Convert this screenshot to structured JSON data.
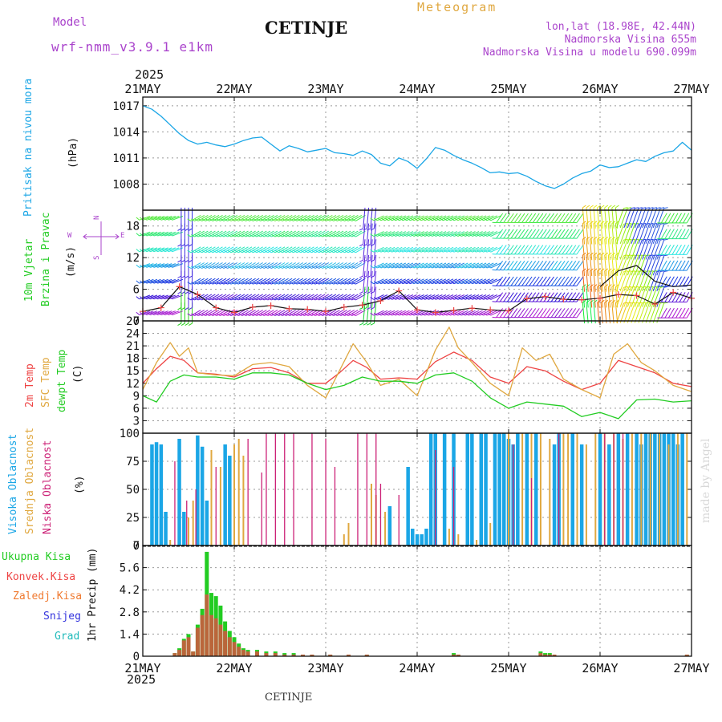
{
  "header": {
    "model_label": "Model",
    "model_name": "wrf-nmm_v3.9.1 e1km",
    "station": "CETINJE",
    "meteogram": "Meteogram",
    "lonlat": "lon,lat (18.98E, 42.44N)",
    "elevation": "Nadmorska Visina 655m",
    "model_elevation": "Nadmorska Visina u modelu 690.099m",
    "year": "2025",
    "footer_station": "CETINJE",
    "credit": "made by Angel"
  },
  "colors": {
    "pressure": "#1ba6e6",
    "temp2m": "#ee4444",
    "sfc": "#e0a840",
    "dewpt": "#22cc22",
    "high_cloud": "#1ba6e6",
    "mid_cloud": "#e0a840",
    "low_cloud": "#cc2277",
    "total_precip": "#22cc22",
    "conv_precip": "#ee4444",
    "frozen_precip": "#f07a30",
    "snow": "#3333dd",
    "grad": "#22bbbb",
    "purple_text": "#aa44cc"
  },
  "chart_data": [
    {
      "type": "line",
      "panel": "pressure",
      "ylabel_series": "Pritisak na nivou mora",
      "ylabel_unit": "(hPa)",
      "x_range": [
        0,
        6
      ],
      "x_tick_labels": [
        "21MAY",
        "22MAY",
        "23MAY",
        "24MAY",
        "25MAY",
        "26MAY",
        "27MAY"
      ],
      "ylim": [
        1005,
        1018
      ],
      "yticks": [
        1008,
        1011,
        1014,
        1017
      ],
      "grid": true,
      "series": [
        {
          "color_key": "pressure",
          "x": [
            0,
            0.1,
            0.2,
            0.3,
            0.4,
            0.5,
            0.6,
            0.7,
            0.8,
            0.9,
            1.0,
            1.1,
            1.2,
            1.3,
            1.4,
            1.5,
            1.6,
            1.7,
            1.8,
            1.9,
            2.0,
            2.1,
            2.2,
            2.3,
            2.4,
            2.5,
            2.6,
            2.7,
            2.8,
            2.9,
            3.0,
            3.1,
            3.2,
            3.3,
            3.4,
            3.5,
            3.6,
            3.7,
            3.8,
            3.9,
            4.0,
            4.1,
            4.2,
            4.3,
            4.4,
            4.5,
            4.6,
            4.7,
            4.8,
            4.9,
            5.0,
            5.1,
            5.2,
            5.3,
            5.4,
            5.5,
            5.6,
            5.7,
            5.8,
            5.9,
            6.0
          ],
          "y": [
            1017.0,
            1016.6,
            1015.8,
            1014.8,
            1013.8,
            1013.0,
            1012.6,
            1012.8,
            1012.5,
            1012.3,
            1012.6,
            1013.0,
            1013.3,
            1013.4,
            1012.6,
            1011.8,
            1012.4,
            1012.1,
            1011.7,
            1011.9,
            1012.1,
            1011.6,
            1011.5,
            1011.3,
            1011.8,
            1011.4,
            1010.4,
            1010.1,
            1011.0,
            1010.6,
            1009.8,
            1010.9,
            1012.2,
            1011.9,
            1011.3,
            1010.8,
            1010.4,
            1009.9,
            1009.3,
            1009.4,
            1009.2,
            1009.3,
            1008.9,
            1008.3,
            1007.8,
            1007.5,
            1008.0,
            1008.7,
            1009.2,
            1009.5,
            1010.2,
            1009.9,
            1010.0,
            1010.4,
            1010.8,
            1010.6,
            1011.2,
            1011.6,
            1011.8,
            1012.8,
            1011.9
          ]
        }
      ]
    },
    {
      "type": "wind-barbs",
      "panel": "wind",
      "ylabel_series_1": "10m Vjetar",
      "ylabel_series_2": "Brzina i Pravac",
      "ylabel_unit": "(m/s)",
      "compass": {
        "north": "N",
        "south": "S",
        "west": "W",
        "east": "E"
      },
      "ylim": [
        0,
        21
      ],
      "yticks": [
        0,
        6,
        12,
        18
      ],
      "grid": true,
      "barb_levels": [
        1.5,
        4.5,
        7.5,
        10.5,
        13.5,
        16.5,
        19.5
      ],
      "speed_series": {
        "x": [
          0,
          0.2,
          0.4,
          0.6,
          0.8,
          1.0,
          1.2,
          1.4,
          1.6,
          1.8,
          2.0,
          2.2,
          2.4,
          2.6,
          2.8,
          3.0,
          3.2,
          3.4,
          3.6,
          3.8,
          4.0,
          4.2,
          4.4,
          4.6,
          4.8,
          5.0,
          5.2,
          5.4,
          5.6,
          5.8,
          6.0
        ],
        "y": [
          1.8,
          2.5,
          6.5,
          5.0,
          2.5,
          1.6,
          2.6,
          2.9,
          2.3,
          2.2,
          1.8,
          2.6,
          3.0,
          3.8,
          5.7,
          2.1,
          1.6,
          2.0,
          2.4,
          2.1,
          1.9,
          4.2,
          4.6,
          4.1,
          4.0,
          4.3,
          5.0,
          4.8,
          3.2,
          5.4,
          4.3
        ]
      },
      "gust_series": {
        "x": [
          5.0,
          5.2,
          5.4,
          5.6,
          5.8,
          6.0
        ],
        "y": [
          6.5,
          9.5,
          10.5,
          7.5,
          6.5,
          6.8
        ]
      },
      "direction_bands": [
        {
          "x_from": 0.0,
          "x_to": 0.4,
          "direction_deg": 250
        },
        {
          "x_from": 0.4,
          "x_to": 0.55,
          "direction_deg": 180
        },
        {
          "x_from": 0.55,
          "x_to": 2.4,
          "direction_deg": 240
        },
        {
          "x_from": 2.4,
          "x_to": 2.55,
          "direction_deg": 185
        },
        {
          "x_from": 2.55,
          "x_to": 3.9,
          "direction_deg": 245
        },
        {
          "x_from": 3.9,
          "x_to": 4.8,
          "direction_deg": 215
        },
        {
          "x_from": 4.8,
          "x_to": 5.2,
          "direction_deg": 355
        },
        {
          "x_from": 5.2,
          "x_to": 5.7,
          "direction_deg": 20
        },
        {
          "x_from": 5.7,
          "x_to": 6.0,
          "direction_deg": 210
        }
      ]
    },
    {
      "type": "line",
      "panel": "temperature",
      "ylabel_series_1": "2m Temp",
      "ylabel_series_2": "SFC Temp",
      "ylabel_series_3": "dewpt Temp",
      "ylabel_unit": "(C)",
      "ylim": [
        0,
        27
      ],
      "yticks": [
        3,
        6,
        9,
        12,
        15,
        18,
        21,
        24,
        27
      ],
      "grid": true,
      "series": [
        {
          "name": "2m Temp",
          "color_key": "temp2m",
          "x": [
            0,
            0.15,
            0.3,
            0.45,
            0.6,
            0.8,
            1.0,
            1.2,
            1.4,
            1.6,
            1.8,
            2.0,
            2.15,
            2.3,
            2.45,
            2.6,
            2.8,
            3.0,
            3.2,
            3.4,
            3.6,
            3.8,
            4.0,
            4.2,
            4.4,
            4.6,
            4.8,
            5.0,
            5.2,
            5.4,
            5.6,
            5.8,
            6.0
          ],
          "y": [
            12.0,
            15.5,
            18.5,
            17.5,
            14.5,
            14.2,
            13.5,
            15.5,
            15.8,
            14.5,
            12.0,
            12.0,
            14.5,
            17.5,
            15.8,
            13.0,
            13.3,
            13.0,
            17.2,
            19.5,
            17.5,
            13.5,
            12.0,
            16.0,
            15.0,
            12.5,
            10.5,
            12.0,
            17.5,
            16.0,
            14.5,
            12.0,
            11.2
          ]
        },
        {
          "name": "SFC Temp",
          "color_key": "sfc",
          "x": [
            0,
            0.15,
            0.3,
            0.4,
            0.5,
            0.6,
            0.8,
            1.0,
            1.2,
            1.4,
            1.6,
            1.8,
            2.0,
            2.15,
            2.3,
            2.45,
            2.6,
            2.8,
            3.0,
            3.2,
            3.35,
            3.45,
            3.6,
            3.8,
            4.0,
            4.15,
            4.3,
            4.45,
            4.6,
            4.8,
            5.0,
            5.15,
            5.3,
            5.45,
            5.6,
            5.8,
            6.0
          ],
          "y": [
            10.5,
            17.0,
            21.8,
            18.5,
            20.5,
            14.5,
            14.0,
            13.8,
            16.5,
            17.0,
            16.0,
            11.5,
            8.5,
            15.0,
            21.5,
            17.0,
            11.5,
            13.0,
            9.0,
            20.0,
            25.5,
            20.5,
            17.0,
            12.0,
            9.0,
            20.5,
            17.5,
            19.0,
            13.0,
            10.5,
            8.5,
            19.0,
            21.5,
            17.0,
            15.0,
            11.5,
            10.0
          ]
        },
        {
          "name": "dewpt Temp",
          "color_key": "dewpt",
          "x": [
            0,
            0.15,
            0.3,
            0.45,
            0.6,
            0.8,
            1.0,
            1.2,
            1.4,
            1.6,
            1.8,
            2.0,
            2.2,
            2.4,
            2.6,
            2.8,
            3.0,
            3.2,
            3.4,
            3.6,
            3.8,
            4.0,
            4.2,
            4.4,
            4.6,
            4.8,
            5.0,
            5.2,
            5.4,
            5.6,
            5.8,
            6.0
          ],
          "y": [
            9.0,
            7.5,
            12.5,
            14.0,
            13.5,
            13.5,
            13.0,
            14.5,
            14.5,
            14.0,
            12.0,
            10.5,
            11.5,
            13.5,
            12.5,
            12.5,
            12.0,
            14.0,
            14.5,
            12.5,
            8.5,
            6.0,
            7.5,
            7.0,
            6.5,
            4.0,
            5.0,
            3.5,
            8.0,
            8.2,
            7.5,
            7.8
          ]
        }
      ]
    },
    {
      "type": "bar",
      "panel": "clouds",
      "ylabel_series_1": "Visoka Oblacnost",
      "ylabel_series_2": "Srednja Oblacnost",
      "ylabel_series_3": "Niska Oblacnost",
      "ylabel_unit": "(%)",
      "ylim": [
        0,
        100
      ],
      "yticks": [
        0,
        25,
        50,
        75,
        100
      ],
      "grid": true,
      "series": [
        {
          "name": "Visoka Oblacnost",
          "color_key": "high_cloud",
          "x": [
            0.1,
            0.15,
            0.2,
            0.25,
            0.4,
            0.45,
            0.6,
            0.65,
            0.7,
            0.9,
            0.95,
            2.7,
            2.9,
            2.95,
            3.0,
            3.05,
            3.1,
            3.15,
            3.2,
            3.3,
            3.4,
            3.55,
            3.6,
            3.7,
            3.75,
            3.85,
            3.9,
            3.95,
            4.0,
            4.05,
            4.1,
            4.2,
            4.3,
            4.5,
            4.55,
            4.7,
            4.8,
            5.0,
            5.1,
            5.2,
            5.3,
            5.4,
            5.45,
            5.5,
            5.55,
            5.6,
            5.65,
            5.7,
            5.75,
            5.8,
            5.85,
            5.9
          ],
          "values": [
            90,
            92,
            90,
            30,
            95,
            30,
            98,
            88,
            40,
            90,
            80,
            35,
            70,
            15,
            10,
            10,
            15,
            100,
            100,
            100,
            100,
            100,
            100,
            100,
            100,
            100,
            100,
            100,
            95,
            90,
            100,
            100,
            100,
            90,
            100,
            100,
            90,
            100,
            90,
            100,
            100,
            100,
            90,
            100,
            100,
            100,
            100,
            100,
            100,
            100,
            90,
            100
          ]
        },
        {
          "name": "Srednja Oblacnost",
          "color_key": "mid_cloud",
          "x": [
            0.3,
            0.5,
            0.55,
            0.75,
            0.85,
            1.0,
            1.05,
            1.1,
            2.2,
            2.25,
            2.5,
            2.55,
            2.65,
            3.35,
            3.45,
            3.65,
            3.8,
            4.0,
            4.15,
            4.25,
            4.35,
            4.45,
            4.6,
            4.65,
            4.75,
            4.85,
            4.95,
            5.05,
            5.15,
            5.25,
            5.35,
            5.45,
            5.55,
            5.65,
            5.75,
            5.85,
            5.95
          ],
          "values": [
            5,
            25,
            40,
            85,
            70,
            90,
            95,
            80,
            10,
            20,
            55,
            45,
            30,
            15,
            10,
            5,
            20,
            100,
            100,
            100,
            100,
            95,
            100,
            100,
            100,
            90,
            100,
            100,
            100,
            95,
            100,
            100,
            100,
            100,
            90,
            100,
            100
          ]
        },
        {
          "name": "Niska Oblacnost",
          "color_key": "low_cloud",
          "x": [
            0.35,
            0.48,
            0.58,
            0.8,
            1.15,
            1.3,
            1.35,
            1.45,
            1.55,
            1.65,
            1.85,
            2.0,
            2.1,
            2.35,
            2.45,
            2.55,
            2.6,
            2.8,
            3.2,
            3.4,
            4.05,
            4.25,
            4.55,
            5.05,
            5.15,
            5.25
          ],
          "values": [
            75,
            40,
            50,
            70,
            95,
            65,
            100,
            100,
            100,
            100,
            100,
            95,
            70,
            100,
            100,
            100,
            55,
            45,
            85,
            70,
            90,
            60,
            100,
            100,
            100,
            100
          ]
        }
      ]
    },
    {
      "type": "bar",
      "panel": "precipitation",
      "legend": [
        "Ukupna Kisa",
        "Konvek.Kisa",
        "Zaledj.Kisa",
        "Snijeg",
        "Grad"
      ],
      "ylabel_unit": "1hr Precip (mm)",
      "ylim": [
        0,
        7
      ],
      "yticks": [
        0,
        1.4,
        2.8,
        4.2,
        5.6,
        7
      ],
      "grid": true,
      "x": [
        0.35,
        0.4,
        0.45,
        0.5,
        0.55,
        0.6,
        0.65,
        0.7,
        0.75,
        0.8,
        0.85,
        0.9,
        0.95,
        1.0,
        1.05,
        1.1,
        1.15,
        1.25,
        1.35,
        1.45,
        1.55,
        1.65,
        1.75,
        1.85,
        2.05,
        2.25,
        2.45,
        3.4,
        3.45,
        4.35,
        4.4,
        4.45,
        4.5,
        5.95
      ],
      "total": [
        0.2,
        0.5,
        1.1,
        1.4,
        0.3,
        2.0,
        3.0,
        6.6,
        4.0,
        3.8,
        3.2,
        2.2,
        1.6,
        1.2,
        0.8,
        0.5,
        0.4,
        0.4,
        0.3,
        0.3,
        0.2,
        0.2,
        0.1,
        0.1,
        0.1,
        0.1,
        0.1,
        0.2,
        0.1,
        0.3,
        0.2,
        0.2,
        0.1,
        0.1
      ],
      "convective": [
        0.2,
        0.4,
        1.0,
        1.2,
        0.3,
        1.8,
        2.6,
        3.9,
        2.6,
        2.4,
        2.0,
        1.6,
        1.2,
        0.9,
        0.6,
        0.4,
        0.3,
        0.3,
        0.2,
        0.2,
        0.1,
        0.1,
        0.1,
        0.1,
        0.1,
        0.1,
        0.1,
        0.1,
        0.1,
        0.2,
        0.1,
        0.1,
        0.1,
        0.1
      ]
    }
  ]
}
